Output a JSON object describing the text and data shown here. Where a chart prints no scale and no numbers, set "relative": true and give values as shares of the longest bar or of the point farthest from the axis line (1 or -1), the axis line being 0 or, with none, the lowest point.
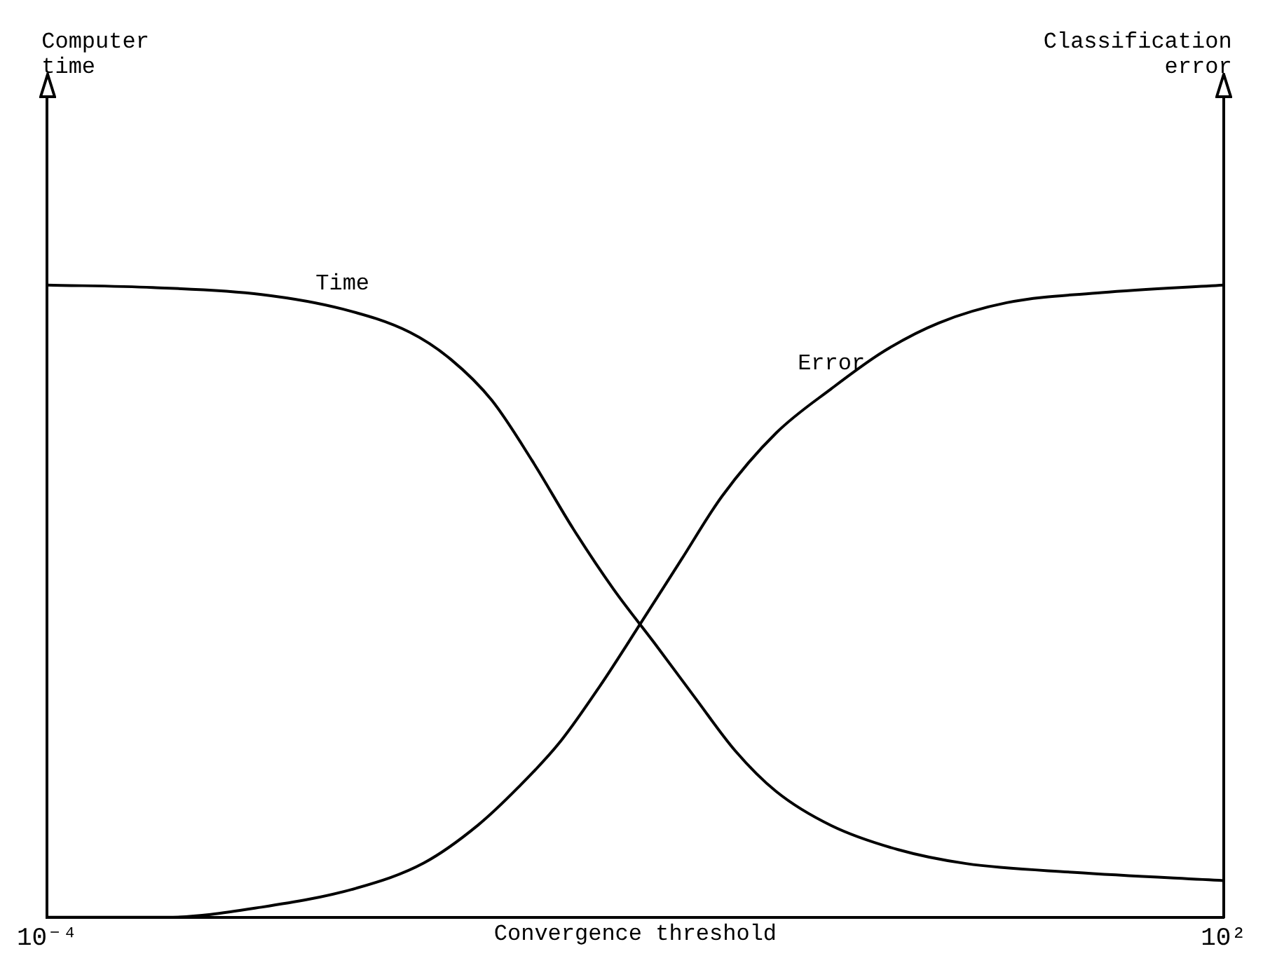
{
  "chart_data": {
    "type": "line",
    "xlabel": "Convergence threshold",
    "annotations": [
      "Computer time",
      "Classification error"
    ],
    "log": "x",
    "relative": true,
    "marker": "none",
    "xlim": [
      0.0001,
      100
    ],
    "xticks": [
      {
        "value": 0.0001,
        "label": "10⁻⁴"
      },
      {
        "value": 100,
        "label": "10²"
      }
    ],
    "series": [
      {
        "name": "Time",
        "color": "#000000",
        "x": [
          0.0001,
          0.000346,
          0.00124,
          0.00321,
          0.0071,
          0.0115,
          0.0185,
          0.0298,
          0.0481,
          0.0774,
          0.125,
          0.201,
          0.324,
          0.523,
          1,
          2.19,
          4.86,
          17.4,
          100
        ],
        "values": [
          1,
          0.996,
          0.985,
          0.962,
          0.925,
          0.882,
          0.818,
          0.722,
          0.615,
          0.519,
          0.434,
          0.348,
          0.263,
          0.199,
          0.145,
          0.107,
          0.085,
          0.071,
          0.058
        ]
      },
      {
        "name": "Error",
        "color": "#000000",
        "x": [
          0.0001,
          0.000406,
          0.00124,
          0.00377,
          0.00835,
          0.0158,
          0.0254,
          0.041,
          0.0661,
          0.107,
          0.172,
          0.277,
          0.523,
          1,
          1.87,
          3.53,
          7.84,
          23.9,
          100
        ],
        "values": [
          0,
          0,
          0.016,
          0.046,
          0.086,
          0.146,
          0.206,
          0.276,
          0.366,
          0.466,
          0.566,
          0.666,
          0.766,
          0.836,
          0.896,
          0.94,
          0.972,
          0.988,
          1
        ]
      }
    ]
  }
}
